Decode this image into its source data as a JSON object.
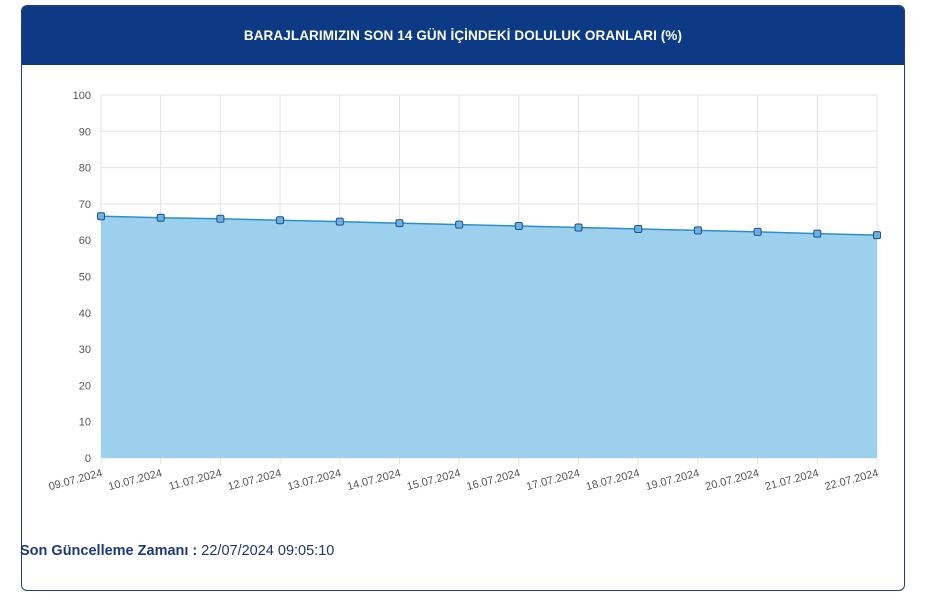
{
  "header": {
    "title": "BARAJLARIMIZIN SON 14 GÜN İÇİNDEKİ DOLULUK ORANLARI (%)"
  },
  "footer": {
    "label": "Son Güncelleme Zamanı :",
    "value": "22/07/2024 09:05:10"
  },
  "chart_data": {
    "type": "area",
    "title": "BARAJLARIMIZIN SON 14 GÜN İÇİNDEKİ DOLULUK ORANLARI (%)",
    "xlabel": "",
    "ylabel": "",
    "ylim": [
      0,
      100
    ],
    "yticks": [
      0,
      10,
      20,
      30,
      40,
      50,
      60,
      70,
      80,
      90,
      100
    ],
    "grid": true,
    "legend": "none",
    "fill_color": "#9dd0ec",
    "line_color": "#2a8fc9",
    "marker_color": "#6ab3e0",
    "marker_edge": "#1f4f8c",
    "categories": [
      "09.07.2024",
      "10.07.2024",
      "11.07.2024",
      "12.07.2024",
      "13.07.2024",
      "14.07.2024",
      "15.07.2024",
      "16.07.2024",
      "17.07.2024",
      "18.07.2024",
      "19.07.2024",
      "20.07.2024",
      "21.07.2024",
      "22.07.2024"
    ],
    "series": [
      {
        "values": [
          66.6,
          66.2,
          65.9,
          65.5,
          65.1,
          64.7,
          64.3,
          63.9,
          63.5,
          63.1,
          62.7,
          62.3,
          61.8,
          61.4
        ]
      }
    ]
  }
}
